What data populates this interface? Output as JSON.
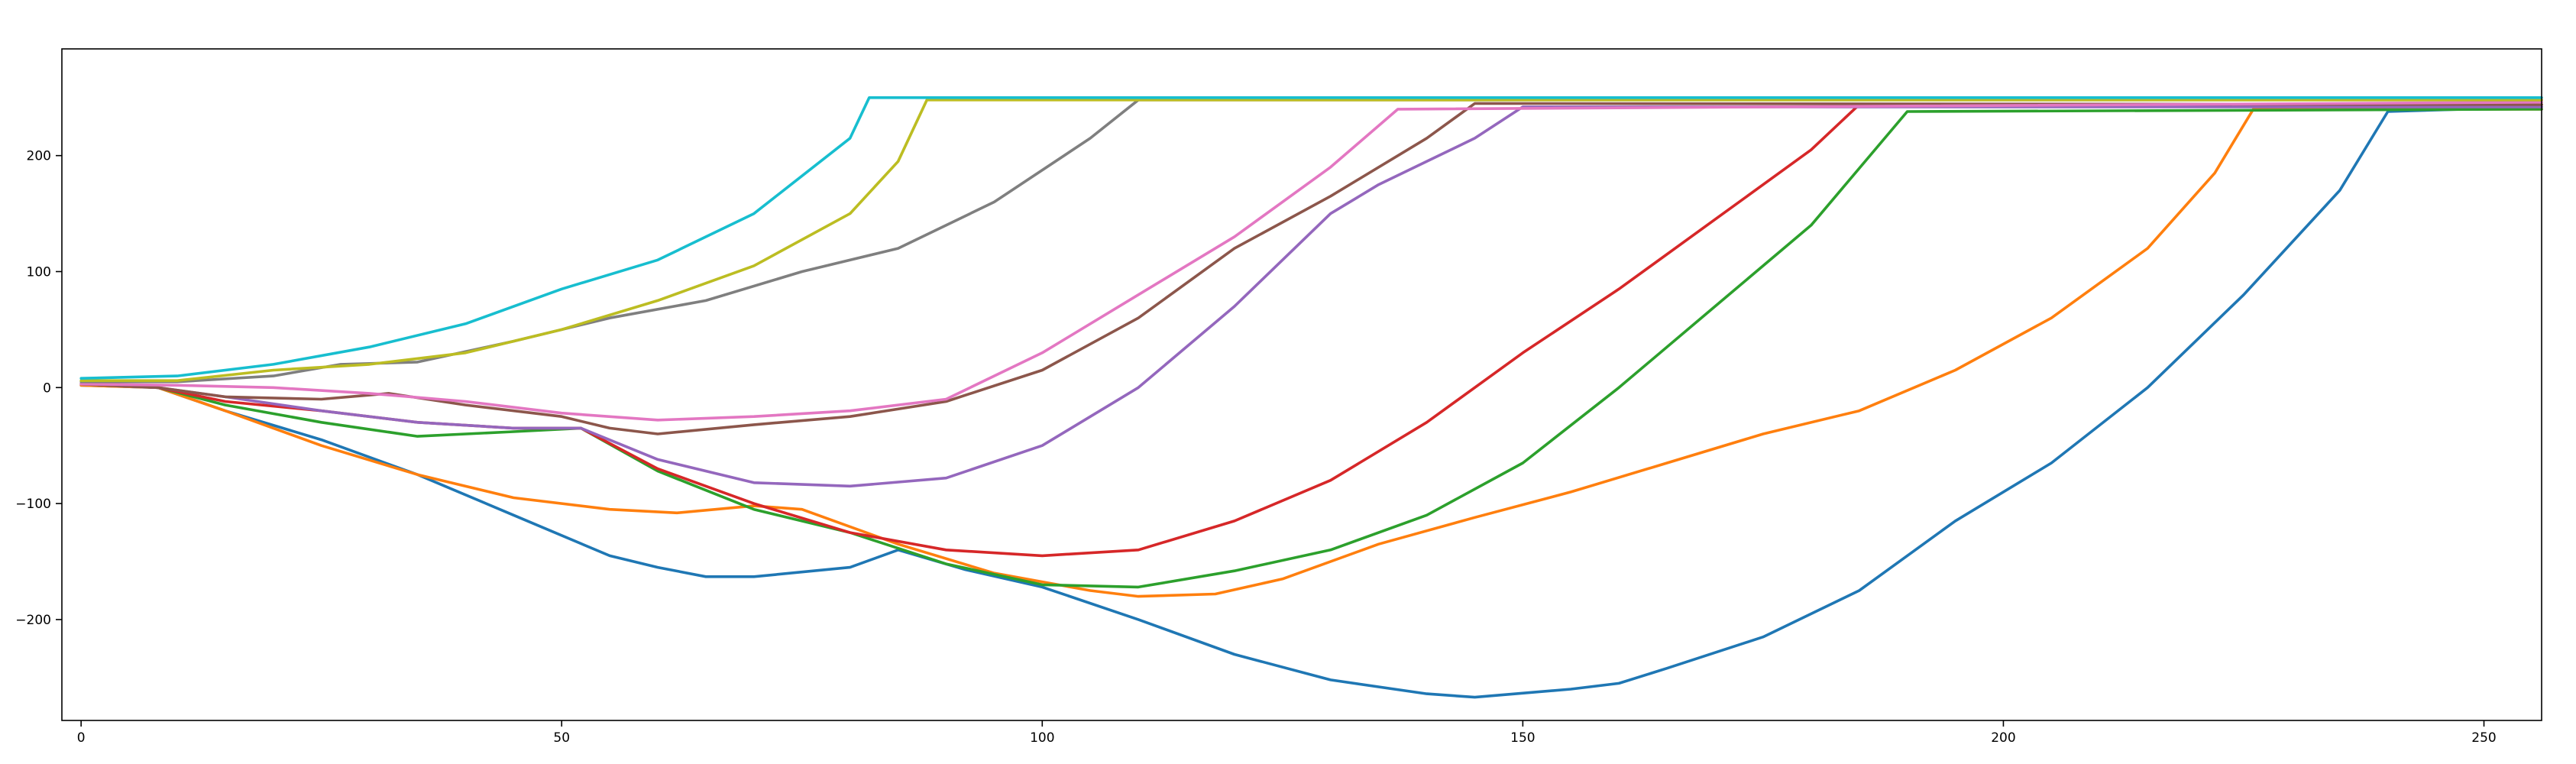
{
  "chart_data": {
    "type": "line",
    "title": "",
    "xlabel": "",
    "ylabel": "",
    "xlim": [
      -2,
      256
    ],
    "ylim": [
      -287,
      292
    ],
    "xticks": [
      0,
      50,
      100,
      150,
      200,
      250
    ],
    "yticks": [
      -200,
      -100,
      0,
      100,
      200
    ],
    "grid": false,
    "legend": "none",
    "series": [
      {
        "color": "#1f77b4",
        "points": [
          [
            0,
            2
          ],
          [
            8,
            0
          ],
          [
            15,
            -20
          ],
          [
            25,
            -45
          ],
          [
            35,
            -75
          ],
          [
            45,
            -110
          ],
          [
            55,
            -145
          ],
          [
            60,
            -155
          ],
          [
            65,
            -163
          ],
          [
            70,
            -163
          ],
          [
            80,
            -155
          ],
          [
            85,
            -140
          ],
          [
            92,
            -157
          ],
          [
            100,
            -172
          ],
          [
            110,
            -200
          ],
          [
            120,
            -230
          ],
          [
            130,
            -252
          ],
          [
            140,
            -264
          ],
          [
            145,
            -267
          ],
          [
            155,
            -260
          ],
          [
            160,
            -255
          ],
          [
            165,
            -242
          ],
          [
            175,
            -215
          ],
          [
            185,
            -175
          ],
          [
            195,
            -115
          ],
          [
            205,
            -65
          ],
          [
            215,
            0
          ],
          [
            225,
            80
          ],
          [
            235,
            170
          ],
          [
            240,
            238
          ],
          [
            256,
            242
          ]
        ]
      },
      {
        "color": "#ff7f0e",
        "points": [
          [
            0,
            2
          ],
          [
            8,
            0
          ],
          [
            15,
            -20
          ],
          [
            25,
            -50
          ],
          [
            35,
            -75
          ],
          [
            45,
            -95
          ],
          [
            55,
            -105
          ],
          [
            62,
            -108
          ],
          [
            70,
            -102
          ],
          [
            75,
            -105
          ],
          [
            85,
            -135
          ],
          [
            95,
            -160
          ],
          [
            105,
            -175
          ],
          [
            110,
            -180
          ],
          [
            118,
            -178
          ],
          [
            125,
            -165
          ],
          [
            135,
            -135
          ],
          [
            145,
            -112
          ],
          [
            155,
            -90
          ],
          [
            165,
            -65
          ],
          [
            175,
            -40
          ],
          [
            185,
            -20
          ],
          [
            195,
            15
          ],
          [
            205,
            60
          ],
          [
            215,
            120
          ],
          [
            222,
            185
          ],
          [
            226,
            240
          ],
          [
            256,
            240
          ]
        ]
      },
      {
        "color": "#2ca02c",
        "points": [
          [
            0,
            3
          ],
          [
            8,
            0
          ],
          [
            15,
            -15
          ],
          [
            25,
            -30
          ],
          [
            35,
            -42
          ],
          [
            45,
            -38
          ],
          [
            52,
            -35
          ],
          [
            60,
            -72
          ],
          [
            70,
            -105
          ],
          [
            80,
            -125
          ],
          [
            90,
            -152
          ],
          [
            100,
            -170
          ],
          [
            110,
            -172
          ],
          [
            120,
            -158
          ],
          [
            130,
            -140
          ],
          [
            140,
            -110
          ],
          [
            150,
            -65
          ],
          [
            160,
            0
          ],
          [
            170,
            70
          ],
          [
            180,
            140
          ],
          [
            190,
            238
          ],
          [
            256,
            240
          ]
        ]
      },
      {
        "color": "#d62728",
        "points": [
          [
            0,
            3
          ],
          [
            8,
            0
          ],
          [
            15,
            -12
          ],
          [
            25,
            -20
          ],
          [
            35,
            -30
          ],
          [
            45,
            -35
          ],
          [
            52,
            -35
          ],
          [
            60,
            -70
          ],
          [
            70,
            -100
          ],
          [
            80,
            -125
          ],
          [
            90,
            -140
          ],
          [
            100,
            -145
          ],
          [
            110,
            -140
          ],
          [
            120,
            -115
          ],
          [
            130,
            -80
          ],
          [
            140,
            -30
          ],
          [
            150,
            30
          ],
          [
            160,
            85
          ],
          [
            170,
            145
          ],
          [
            180,
            205
          ],
          [
            185,
            244
          ],
          [
            256,
            244
          ]
        ]
      },
      {
        "color": "#9467bd",
        "points": [
          [
            0,
            3
          ],
          [
            8,
            0
          ],
          [
            15,
            -8
          ],
          [
            25,
            -20
          ],
          [
            35,
            -30
          ],
          [
            45,
            -35
          ],
          [
            52,
            -35
          ],
          [
            60,
            -62
          ],
          [
            70,
            -82
          ],
          [
            80,
            -85
          ],
          [
            90,
            -78
          ],
          [
            100,
            -50
          ],
          [
            110,
            0
          ],
          [
            120,
            70
          ],
          [
            130,
            150
          ],
          [
            135,
            175
          ],
          [
            140,
            195
          ],
          [
            145,
            215
          ],
          [
            150,
            242
          ],
          [
            256,
            242
          ]
        ]
      },
      {
        "color": "#8c564b",
        "points": [
          [
            0,
            3
          ],
          [
            8,
            0
          ],
          [
            15,
            -8
          ],
          [
            25,
            -10
          ],
          [
            32,
            -5
          ],
          [
            40,
            -15
          ],
          [
            50,
            -25
          ],
          [
            55,
            -35
          ],
          [
            60,
            -40
          ],
          [
            70,
            -32
          ],
          [
            80,
            -25
          ],
          [
            90,
            -12
          ],
          [
            100,
            15
          ],
          [
            110,
            60
          ],
          [
            120,
            120
          ],
          [
            130,
            165
          ],
          [
            140,
            215
          ],
          [
            145,
            245
          ],
          [
            256,
            244
          ]
        ]
      },
      {
        "color": "#e377c2",
        "points": [
          [
            0,
            3
          ],
          [
            10,
            2
          ],
          [
            20,
            0
          ],
          [
            30,
            -5
          ],
          [
            40,
            -12
          ],
          [
            50,
            -22
          ],
          [
            60,
            -28
          ],
          [
            70,
            -25
          ],
          [
            80,
            -20
          ],
          [
            90,
            -10
          ],
          [
            100,
            30
          ],
          [
            110,
            80
          ],
          [
            120,
            130
          ],
          [
            130,
            190
          ],
          [
            137,
            240
          ],
          [
            256,
            246
          ]
        ]
      },
      {
        "color": "#7f7f7f",
        "points": [
          [
            0,
            5
          ],
          [
            10,
            5
          ],
          [
            20,
            10
          ],
          [
            27,
            20
          ],
          [
            35,
            22
          ],
          [
            45,
            40
          ],
          [
            55,
            60
          ],
          [
            65,
            75
          ],
          [
            75,
            100
          ],
          [
            85,
            120
          ],
          [
            95,
            160
          ],
          [
            105,
            215
          ],
          [
            110,
            248
          ],
          [
            256,
            248
          ]
        ]
      },
      {
        "color": "#bcbd22",
        "points": [
          [
            0,
            6
          ],
          [
            10,
            6
          ],
          [
            20,
            15
          ],
          [
            30,
            20
          ],
          [
            40,
            30
          ],
          [
            50,
            50
          ],
          [
            60,
            75
          ],
          [
            70,
            105
          ],
          [
            80,
            150
          ],
          [
            85,
            195
          ],
          [
            88,
            248
          ],
          [
            256,
            248
          ]
        ]
      },
      {
        "color": "#17becf",
        "points": [
          [
            0,
            8
          ],
          [
            10,
            10
          ],
          [
            20,
            20
          ],
          [
            30,
            35
          ],
          [
            40,
            55
          ],
          [
            50,
            85
          ],
          [
            60,
            110
          ],
          [
            70,
            150
          ],
          [
            80,
            215
          ],
          [
            82,
            250
          ],
          [
            256,
            250
          ]
        ]
      }
    ]
  }
}
